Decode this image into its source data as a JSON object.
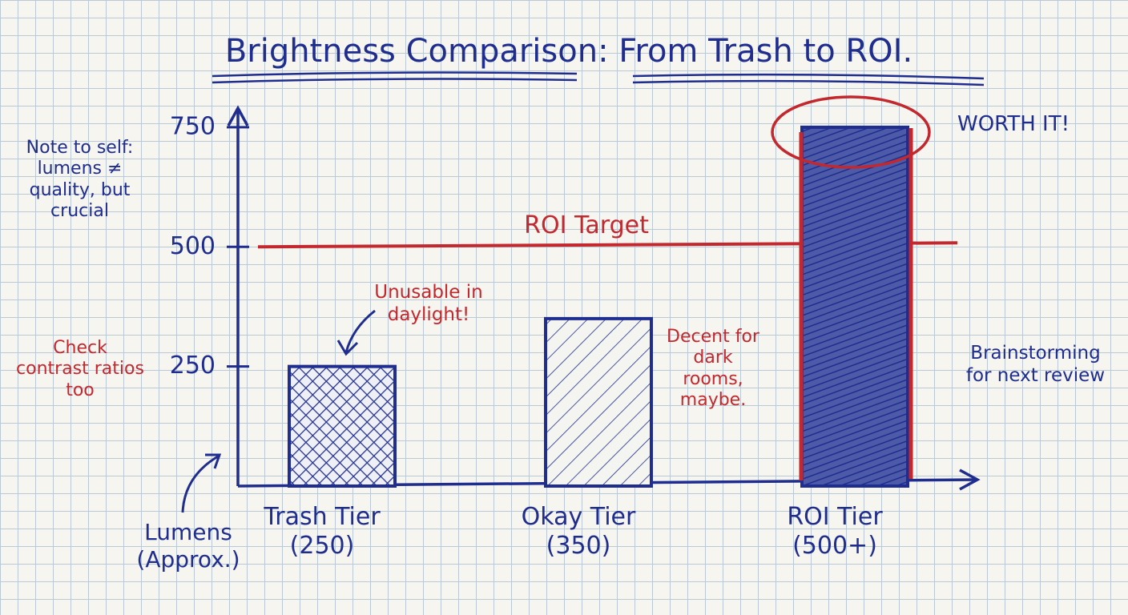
{
  "chart_data": {
    "type": "bar",
    "title": "Brightness Comparison: From Trash to ROI.",
    "y_label": "Lumens (Approx.)",
    "categories": [
      "Trash Tier (250)",
      "Okay Tier (350)",
      "ROI Tier (500+)"
    ],
    "values": [
      250,
      350,
      750
    ],
    "colors": [
      "#1f2d8f",
      "#1f2d8f",
      "#1f2d8f"
    ],
    "ylim": [
      0,
      790
    ],
    "yticks": [
      250,
      500,
      750
    ],
    "reference_line": {
      "value": 500,
      "label": "ROI Target",
      "color": "#c3282e"
    },
    "annotations": [
      "Unusable in daylight!",
      "Decent for dark rooms, maybe.",
      "WORTH IT!",
      "Note to self: lumens ≠ quality, but crucial",
      "Check contrast ratios too",
      "Brainstorming for next review"
    ]
  }
}
